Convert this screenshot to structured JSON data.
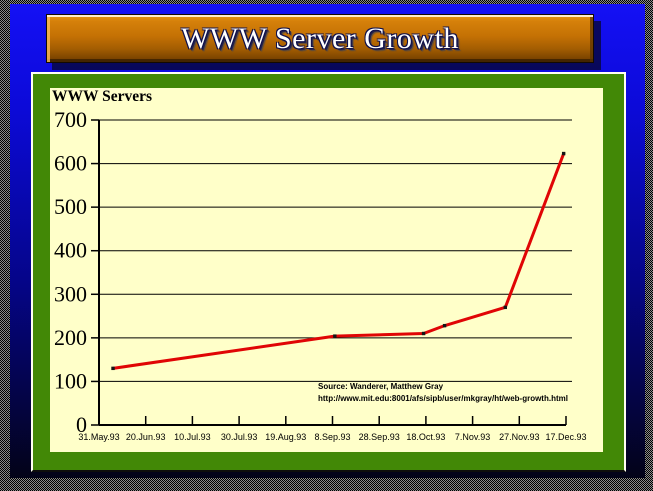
{
  "slide": {
    "title": "WWW Server Growth"
  },
  "chart": {
    "heading": "WWW Servers",
    "source_line1": "Source: Wanderer, Matthew Gray",
    "source_line2": "http://www.mit.edu:8001/afs/sipb/user/mkgray/ht/web-growth.html"
  },
  "colors": {
    "background_top_blue": "#1410f5",
    "background_bottom_navy": "#030318",
    "title_bar_orange": "#c47104",
    "panel_green": "#428806",
    "plot_background": "#ffffc9",
    "line_red": "#e00505",
    "marker_black": "#151515",
    "axis_black": "#000000"
  },
  "chart_data": {
    "type": "line",
    "title": "WWW Servers",
    "xlabel": "",
    "ylabel": "",
    "ylim": [
      0,
      700
    ],
    "ytick_labels": [
      "0",
      "100",
      "200",
      "300",
      "400",
      "500",
      "600",
      "700"
    ],
    "xtick_labels": [
      "31.May.93",
      "20.Jun.93",
      "10.Jul.93",
      "30.Jul.93",
      "19.Aug.93",
      "8.Sep.93",
      "28.Sep.93",
      "18.Oct.93",
      "7.Nov.93",
      "27.Nov.93",
      "17.Dec.93"
    ],
    "x_range_days": [
      0,
      200
    ],
    "x_tick_interval_days": 20,
    "grid": "horizontal gridlines every 100, black on pale yellow",
    "legend": "none",
    "series": [
      {
        "name": "WWW Servers",
        "color": "#e00505",
        "marker": "small black square",
        "points": [
          {
            "day": 6,
            "value": 130
          },
          {
            "day": 101,
            "value": 204
          },
          {
            "day": 139,
            "value": 210
          },
          {
            "day": 148,
            "value": 228
          },
          {
            "day": 174,
            "value": 270
          },
          {
            "day": 199,
            "value": 623
          }
        ]
      }
    ],
    "annotations": [
      "Source: Wanderer, Matthew Gray",
      "http://www.mit.edu:8001/afs/sipb/user/mkgray/ht/web-growth.html"
    ]
  }
}
